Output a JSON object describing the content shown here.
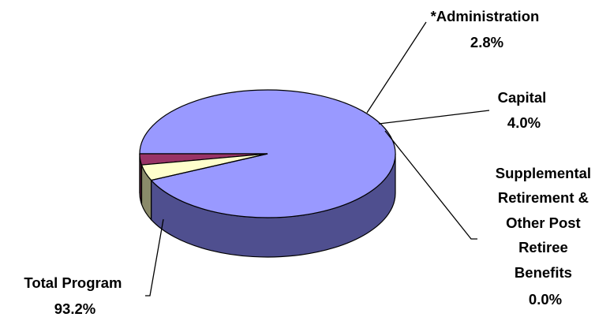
{
  "chart_data": {
    "type": "pie",
    "slices": [
      {
        "label": "Total Program",
        "value": 93.2,
        "value_text": "93.2%",
        "color": "#9999ff",
        "side_color": "#4f4f8f"
      },
      {
        "label": "*Administration",
        "value": 2.8,
        "value_text": "2.8%",
        "color": "#993366",
        "side_color": "#4d1a33"
      },
      {
        "label": "Capital",
        "value": 4.0,
        "value_text": "4.0%",
        "color": "#ffffcc",
        "side_color": "#8a8a6a"
      },
      {
        "label": "Supplemental Retirement & Other Post Retiree Benefits",
        "value": 0.0,
        "value_text": "0.0%",
        "color": "#ffffff",
        "side_color": "#808080"
      }
    ],
    "labels": {
      "total_program": [
        "Total Program",
        "93.2%"
      ],
      "administration": [
        "*Administration",
        "2.8%"
      ],
      "capital": [
        "Capital",
        "4.0%"
      ],
      "supplemental": [
        "Supplemental",
        "Retirement &",
        "Other Post",
        "Retiree",
        "Benefits",
        "0.0%"
      ]
    },
    "legend": "none",
    "style": "3d-pie"
  }
}
